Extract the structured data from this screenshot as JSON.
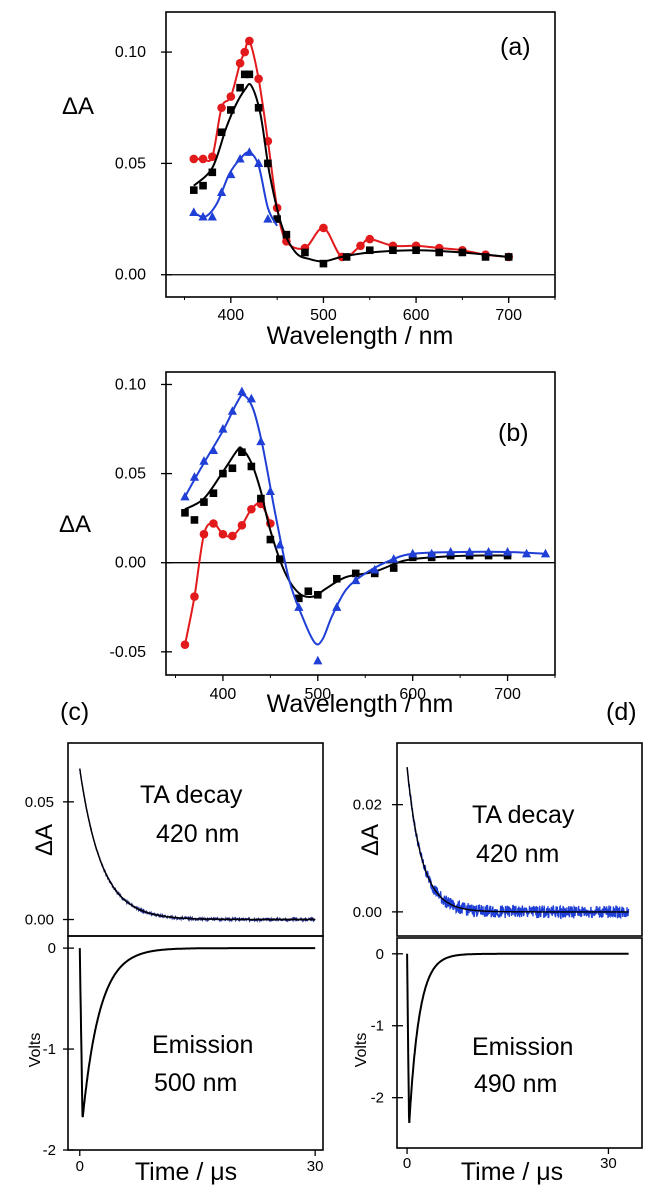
{
  "chart_data": [
    {
      "id": "a",
      "type": "line",
      "panel_label": "(a)",
      "xlabel": "Wavelength / nm",
      "ylabel": "ΔA",
      "xlim": [
        330,
        750
      ],
      "ylim": [
        -0.01,
        0.118
      ],
      "xticks": [
        400,
        500,
        600,
        700
      ],
      "yticks": [
        0.0,
        0.05,
        0.1
      ],
      "ytick_labels": [
        "0.00",
        "0.05",
        "0.10"
      ],
      "zero_line": true,
      "series": [
        {
          "color": "#e31a1c",
          "marker": "circle",
          "points": [
            [
              360,
              0.052
            ],
            [
              370,
              0.052
            ],
            [
              380,
              0.053
            ],
            [
              390,
              0.075
            ],
            [
              400,
              0.08
            ],
            [
              410,
              0.095
            ],
            [
              415,
              0.1
            ],
            [
              420,
              0.105
            ],
            [
              430,
              0.088
            ],
            [
              440,
              0.06
            ],
            [
              450,
              0.03
            ],
            [
              460,
              0.015
            ],
            [
              480,
              0.012
            ],
            [
              500,
              0.021
            ],
            [
              520,
              0.008
            ],
            [
              540,
              0.013
            ],
            [
              550,
              0.016
            ],
            [
              575,
              0.013
            ],
            [
              600,
              0.013
            ],
            [
              625,
              0.012
            ],
            [
              650,
              0.011
            ],
            [
              675,
              0.009
            ],
            [
              700,
              0.008
            ]
          ],
          "curve": [
            [
              360,
              0.052
            ],
            [
              370,
              0.052
            ],
            [
              380,
              0.053
            ],
            [
              390,
              0.075
            ],
            [
              400,
              0.08
            ],
            [
              410,
              0.095
            ],
            [
              415,
              0.1
            ],
            [
              420,
              0.105
            ],
            [
              430,
              0.088
            ],
            [
              440,
              0.06
            ],
            [
              450,
              0.03
            ],
            [
              460,
              0.015
            ],
            [
              480,
              0.012
            ],
            [
              500,
              0.021
            ],
            [
              520,
              0.008
            ],
            [
              540,
              0.013
            ],
            [
              550,
              0.016
            ],
            [
              575,
              0.013
            ],
            [
              600,
              0.013
            ],
            [
              625,
              0.012
            ],
            [
              650,
              0.011
            ],
            [
              675,
              0.009
            ],
            [
              700,
              0.008
            ]
          ]
        },
        {
          "color": "#000000",
          "marker": "square",
          "points": [
            [
              360,
              0.038
            ],
            [
              370,
              0.04
            ],
            [
              380,
              0.046
            ],
            [
              390,
              0.064
            ],
            [
              400,
              0.074
            ],
            [
              410,
              0.084
            ],
            [
              415,
              0.09
            ],
            [
              420,
              0.09
            ],
            [
              430,
              0.075
            ],
            [
              440,
              0.05
            ],
            [
              450,
              0.025
            ],
            [
              460,
              0.018
            ],
            [
              480,
              0.01
            ],
            [
              500,
              0.005
            ],
            [
              525,
              0.008
            ],
            [
              550,
              0.011
            ],
            [
              575,
              0.011
            ],
            [
              600,
              0.011
            ],
            [
              625,
              0.01
            ],
            [
              650,
              0.01
            ],
            [
              675,
              0.008
            ],
            [
              700,
              0.008
            ]
          ],
          "curve": [
            [
              360,
              0.04
            ],
            [
              380,
              0.048
            ],
            [
              395,
              0.066
            ],
            [
              405,
              0.076
            ],
            [
              415,
              0.083
            ],
            [
              422,
              0.085
            ],
            [
              432,
              0.072
            ],
            [
              442,
              0.045
            ],
            [
              455,
              0.022
            ],
            [
              470,
              0.01
            ],
            [
              485,
              0.007
            ],
            [
              500,
              0.006
            ],
            [
              520,
              0.008
            ],
            [
              550,
              0.01
            ],
            [
              600,
              0.011
            ],
            [
              650,
              0.01
            ],
            [
              700,
              0.008
            ]
          ]
        },
        {
          "color": "#1f3fd6",
          "marker": "triangle",
          "points": [
            [
              360,
              0.028
            ],
            [
              370,
              0.026
            ],
            [
              380,
              0.026
            ],
            [
              390,
              0.037
            ],
            [
              400,
              0.045
            ],
            [
              410,
              0.052
            ],
            [
              420,
              0.055
            ],
            [
              430,
              0.05
            ],
            [
              440,
              0.025
            ]
          ],
          "curve": [
            [
              360,
              0.028
            ],
            [
              372,
              0.026
            ],
            [
              385,
              0.032
            ],
            [
              398,
              0.045
            ],
            [
              410,
              0.052
            ],
            [
              420,
              0.055
            ],
            [
              430,
              0.049
            ],
            [
              440,
              0.03
            ],
            [
              450,
              0.022
            ]
          ]
        }
      ]
    },
    {
      "id": "b",
      "type": "line",
      "panel_label": "(b)",
      "xlabel": "Wavelength / nm",
      "ylabel": "ΔA",
      "xlim": [
        340,
        750
      ],
      "ylim": [
        -0.063,
        0.107
      ],
      "xticks": [
        400,
        500,
        600,
        700
      ],
      "yticks": [
        -0.05,
        0.0,
        0.05,
        0.1
      ],
      "ytick_labels": [
        "-0.05",
        "0.00",
        "0.05",
        "0.10"
      ],
      "zero_line": true,
      "series": [
        {
          "color": "#e31a1c",
          "marker": "circle",
          "points": [
            [
              360,
              -0.046
            ],
            [
              370,
              -0.019
            ],
            [
              380,
              0.016
            ],
            [
              390,
              0.022
            ],
            [
              400,
              0.016
            ],
            [
              410,
              0.015
            ],
            [
              420,
              0.021
            ],
            [
              430,
              0.03
            ],
            [
              440,
              0.033
            ],
            [
              450,
              0.022
            ]
          ],
          "curve": [
            [
              360,
              -0.046
            ],
            [
              370,
              -0.019
            ],
            [
              380,
              0.016
            ],
            [
              390,
              0.022
            ],
            [
              400,
              0.016
            ],
            [
              410,
              0.015
            ],
            [
              420,
              0.021
            ],
            [
              430,
              0.03
            ],
            [
              440,
              0.033
            ],
            [
              450,
              0.022
            ]
          ]
        },
        {
          "color": "#000000",
          "marker": "square",
          "points": [
            [
              360,
              0.028
            ],
            [
              370,
              0.024
            ],
            [
              380,
              0.034
            ],
            [
              390,
              0.039
            ],
            [
              400,
              0.05
            ],
            [
              410,
              0.053
            ],
            [
              420,
              0.062
            ],
            [
              430,
              0.054
            ],
            [
              440,
              0.036
            ],
            [
              450,
              0.013
            ],
            [
              460,
              0.002
            ],
            [
              480,
              -0.02
            ],
            [
              490,
              -0.016
            ],
            [
              500,
              -0.018
            ],
            [
              520,
              -0.009
            ],
            [
              540,
              -0.006
            ],
            [
              560,
              -0.006
            ],
            [
              580,
              -0.003
            ],
            [
              600,
              0.003
            ],
            [
              620,
              0.003
            ],
            [
              640,
              0.004
            ],
            [
              660,
              0.004
            ],
            [
              680,
              0.004
            ],
            [
              700,
              0.004
            ]
          ],
          "curve": [
            [
              360,
              0.03
            ],
            [
              380,
              0.036
            ],
            [
              400,
              0.051
            ],
            [
              415,
              0.063
            ],
            [
              420,
              0.064
            ],
            [
              430,
              0.056
            ],
            [
              440,
              0.04
            ],
            [
              450,
              0.018
            ],
            [
              465,
              -0.005
            ],
            [
              480,
              -0.017
            ],
            [
              495,
              -0.019
            ],
            [
              510,
              -0.014
            ],
            [
              530,
              -0.008
            ],
            [
              560,
              -0.005
            ],
            [
              590,
              0.001
            ],
            [
              620,
              0.003
            ],
            [
              660,
              0.004
            ],
            [
              700,
              0.004
            ]
          ]
        },
        {
          "color": "#1f3fd6",
          "marker": "triangle",
          "points": [
            [
              360,
              0.037
            ],
            [
              370,
              0.048
            ],
            [
              380,
              0.057
            ],
            [
              390,
              0.063
            ],
            [
              400,
              0.075
            ],
            [
              410,
              0.085
            ],
            [
              420,
              0.096
            ],
            [
              430,
              0.092
            ],
            [
              440,
              0.068
            ],
            [
              450,
              0.04
            ],
            [
              460,
              0.01
            ],
            [
              480,
              -0.025
            ],
            [
              500,
              -0.055
            ],
            [
              520,
              -0.025
            ],
            [
              540,
              -0.01
            ],
            [
              560,
              -0.004
            ],
            [
              580,
              0.002
            ],
            [
              600,
              0.005
            ],
            [
              620,
              0.005
            ],
            [
              640,
              0.006
            ],
            [
              660,
              0.006
            ],
            [
              680,
              0.006
            ],
            [
              700,
              0.006
            ],
            [
              720,
              0.005
            ],
            [
              740,
              0.005
            ]
          ],
          "curve": [
            [
              360,
              0.037
            ],
            [
              380,
              0.056
            ],
            [
              400,
              0.074
            ],
            [
              415,
              0.09
            ],
            [
              422,
              0.094
            ],
            [
              432,
              0.086
            ],
            [
              442,
              0.065
            ],
            [
              455,
              0.028
            ],
            [
              470,
              -0.01
            ],
            [
              485,
              -0.032
            ],
            [
              497,
              -0.045
            ],
            [
              505,
              -0.043
            ],
            [
              515,
              -0.03
            ],
            [
              530,
              -0.015
            ],
            [
              550,
              -0.006
            ],
            [
              575,
              0.001
            ],
            [
              600,
              0.005
            ],
            [
              650,
              0.006
            ],
            [
              700,
              0.006
            ],
            [
              740,
              0.005
            ]
          ]
        }
      ]
    },
    {
      "id": "c-top",
      "type": "line",
      "panel_label": "(c)",
      "xlabel": "",
      "ylabel": "ΔA",
      "annotation": [
        "TA decay",
        "420 nm"
      ],
      "xlim": [
        -1.5,
        31
      ],
      "ylim": [
        -0.007,
        0.075
      ],
      "yticks": [
        0.0,
        0.05
      ],
      "ytick_labels": [
        "0.00",
        "0.05"
      ],
      "series": [
        {
          "color": "#1a237e",
          "amplitude": 0.064,
          "tau": 2.8,
          "noise": 0.0005,
          "t_max": 30
        }
      ]
    },
    {
      "id": "c-bottom",
      "type": "line",
      "xlabel": "Time / μs",
      "ylabel": "Volts",
      "annotation": [
        "Emission",
        "500 nm"
      ],
      "xlim": [
        -1.5,
        31
      ],
      "ylim": [
        -2.0,
        0.12
      ],
      "xticks": [
        0,
        30
      ],
      "yticks": [
        0,
        -1,
        -2
      ],
      "ytick_labels": [
        "0",
        "-1",
        "-2"
      ],
      "series": [
        {
          "color": "#000000",
          "amplitude": -1.7,
          "tau": 2.2,
          "t_peak": 0.35,
          "t_max": 30
        }
      ]
    },
    {
      "id": "d-top",
      "type": "line",
      "panel_label": "(d)",
      "xlabel": "",
      "ylabel": "ΔA",
      "annotation": [
        "TA decay",
        "420 nm"
      ],
      "xlim": [
        -1.5,
        35
      ],
      "ylim": [
        -0.0045,
        0.0315
      ],
      "yticks": [
        0.0,
        0.02
      ],
      "ytick_labels": [
        "0.00",
        "0.02"
      ],
      "series": [
        {
          "color": "#1f3fd6",
          "amplitude": 0.027,
          "tau": 2.2,
          "noise": 0.0012,
          "t_max": 33
        }
      ]
    },
    {
      "id": "d-bottom",
      "type": "line",
      "xlabel": "Time / μs",
      "ylabel": "Volts",
      "annotation": [
        "Emission",
        "490 nm"
      ],
      "xlim": [
        -1.5,
        35
      ],
      "ylim": [
        -2.7,
        0.22
      ],
      "xticks": [
        0,
        30
      ],
      "yticks": [
        0,
        -1,
        -2
      ],
      "ytick_labels": [
        "0",
        "-1",
        "-2"
      ],
      "series": [
        {
          "color": "#000000",
          "amplitude": -2.4,
          "tau": 1.5,
          "t_peak": 0.3,
          "t_max": 33
        }
      ]
    }
  ]
}
